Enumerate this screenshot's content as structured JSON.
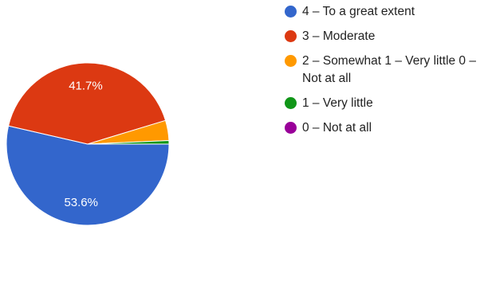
{
  "chart_data": {
    "type": "pie",
    "slices": [
      {
        "label": "4 – To a great extent",
        "value": 53.6,
        "color": "#3366cc",
        "data_label": "53.6%"
      },
      {
        "label": "3 – Moderate",
        "value": 41.7,
        "color": "#dc3912",
        "data_label": "41.7%"
      },
      {
        "label": "2 – Somewhat 1 – Very little 0 – Not at all",
        "value": 4.0,
        "color": "#ff9900",
        "data_label": ""
      },
      {
        "label": "1 – Very little",
        "value": 0.7,
        "color": "#109618",
        "data_label": ""
      },
      {
        "label": "0 – Not at all",
        "value": 0.0,
        "color": "#990099",
        "data_label": ""
      }
    ],
    "legend_position": "right"
  }
}
